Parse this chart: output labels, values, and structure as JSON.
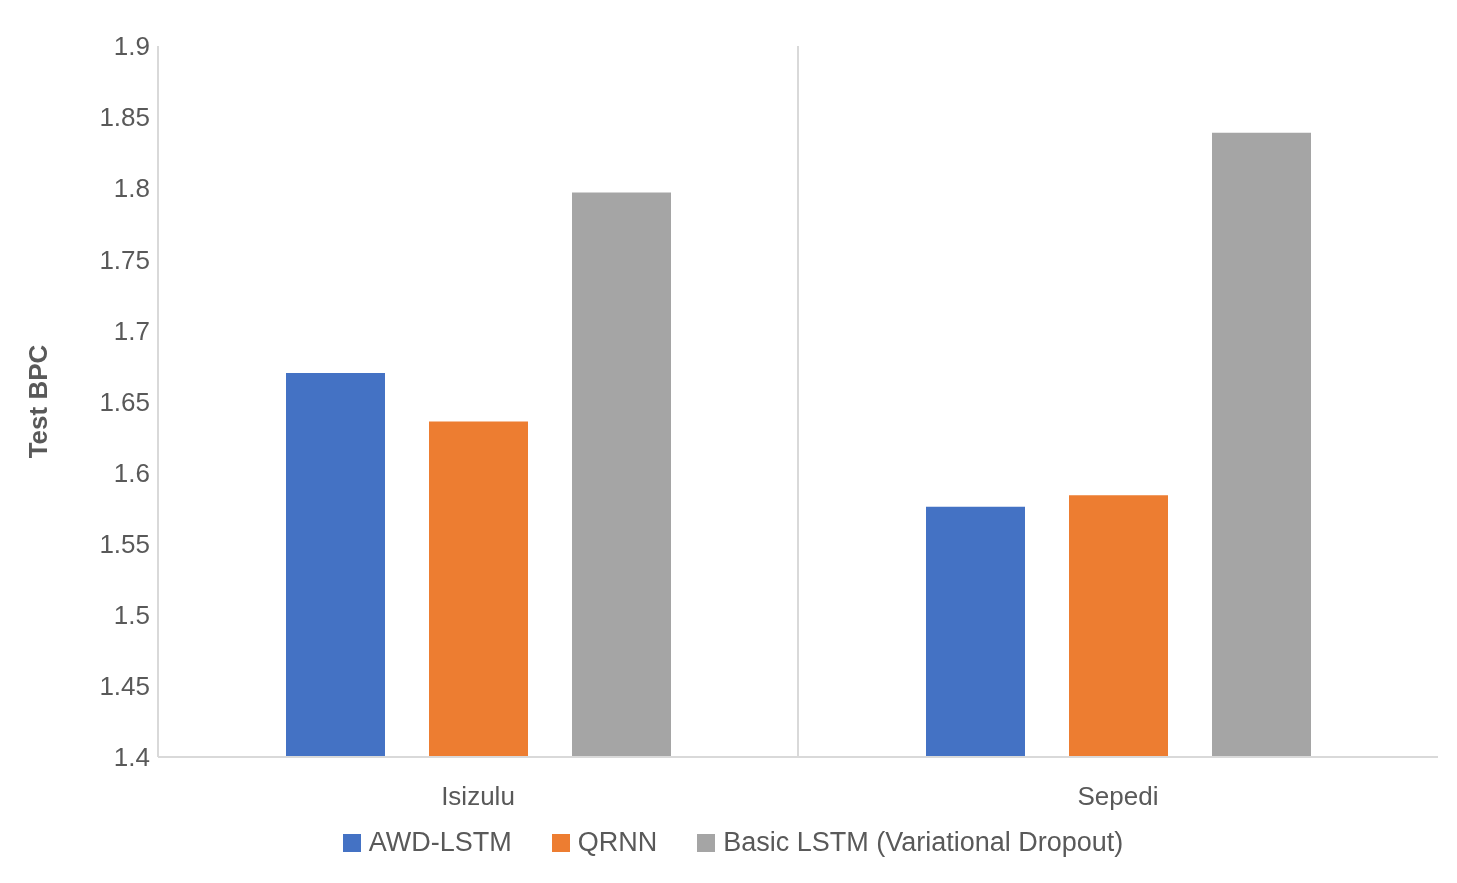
{
  "chart_data": {
    "type": "bar",
    "ylabel": "Test BPC",
    "categories": [
      "Isizulu",
      "Sepedi"
    ],
    "series": [
      {
        "name": "AWD-LSTM",
        "color": "#4472c4",
        "values": [
          1.67,
          1.576
        ]
      },
      {
        "name": "QRNN",
        "color": "#ed7d31",
        "values": [
          1.636,
          1.584
        ]
      },
      {
        "name": "Basic LSTM (Variational Dropout)",
        "color": "#a5a5a5",
        "values": [
          1.797,
          1.839
        ]
      }
    ],
    "ylim": [
      1.4,
      1.9
    ],
    "yticks": [
      1.4,
      1.45,
      1.5,
      1.55,
      1.6,
      1.65,
      1.7,
      1.75,
      1.8,
      1.85,
      1.9
    ],
    "grid": "x",
    "legend": "bottom"
  }
}
